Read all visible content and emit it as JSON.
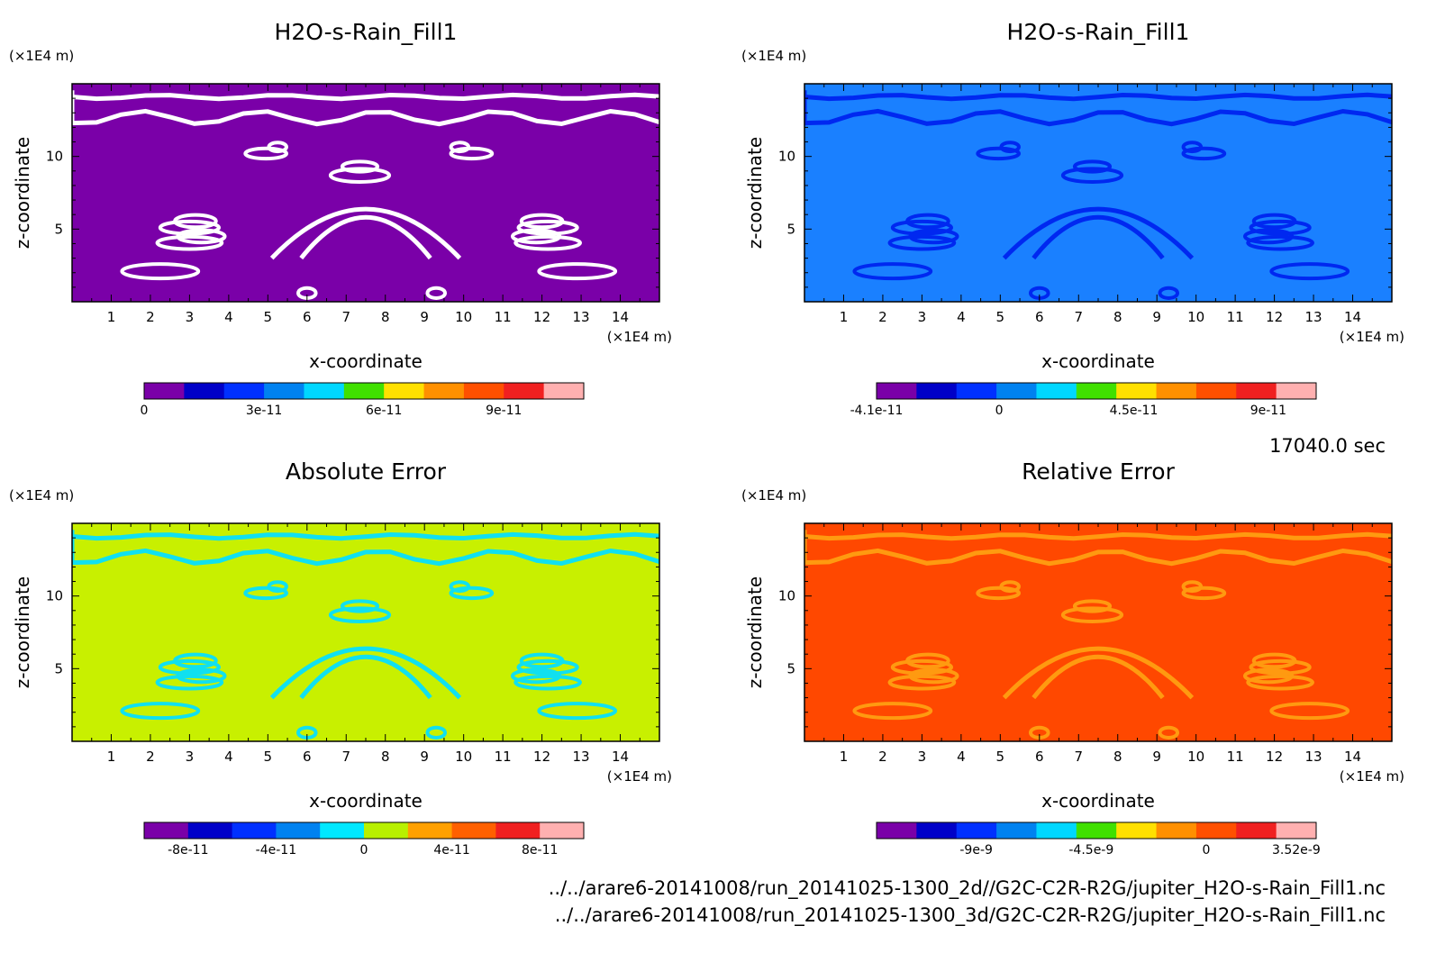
{
  "chart_data": [
    {
      "type": "heatmap",
      "title": "H2O-s-Rain_Fill1",
      "xlabel": "x-coordinate",
      "ylabel": "z-coordinate",
      "x_unit": "(×1E4 m)",
      "y_unit": "(×1E4 m)",
      "xlim": [
        0,
        15
      ],
      "ylim": [
        0,
        15
      ],
      "x_ticks": [
        1,
        2,
        3,
        4,
        5,
        6,
        7,
        8,
        9,
        10,
        11,
        12,
        13,
        14
      ],
      "y_ticks": [
        5,
        10
      ],
      "background_color": "#7a00a8",
      "feature_color": "#ffffff",
      "colorbar": {
        "colors": [
          "#7a00a8",
          "#0000c8",
          "#0030ff",
          "#0082f0",
          "#00d7ff",
          "#40e000",
          "#ffe000",
          "#ff9000",
          "#ff5000",
          "#f02020",
          "#ffb0b0"
        ],
        "tick_labels": [
          "0",
          "3e-11",
          "6e-11",
          "9e-11"
        ],
        "tick_values": [
          0,
          3,
          6,
          9
        ],
        "range": [
          0,
          11
        ]
      }
    },
    {
      "type": "heatmap",
      "title": "H2O-s-Rain_Fill1",
      "xlabel": "x-coordinate",
      "ylabel": "z-coordinate",
      "x_unit": "(×1E4 m)",
      "y_unit": "(×1E4 m)",
      "xlim": [
        0,
        15
      ],
      "ylim": [
        0,
        15
      ],
      "x_ticks": [
        1,
        2,
        3,
        4,
        5,
        6,
        7,
        8,
        9,
        10,
        11,
        12,
        13,
        14
      ],
      "y_ticks": [
        5,
        10
      ],
      "background_color": "#1a80ff",
      "feature_color": "#0028f0",
      "colorbar": {
        "colors": [
          "#7a00a8",
          "#0000c8",
          "#0030ff",
          "#0082f0",
          "#00d7ff",
          "#40e000",
          "#ffe000",
          "#ff9000",
          "#ff5000",
          "#f02020",
          "#ffb0b0"
        ],
        "tick_labels": [
          "-4.1e-11",
          "0",
          "4.5e-11",
          "9e-11"
        ],
        "tick_values": [
          -4.1,
          0,
          4.5,
          9
        ],
        "range": [
          -4.1,
          10.6
        ]
      }
    },
    {
      "type": "heatmap",
      "title": "Absolute Error",
      "xlabel": "x-coordinate",
      "ylabel": "z-coordinate",
      "x_unit": "(×1E4 m)",
      "y_unit": "(×1E4 m)",
      "xlim": [
        0,
        15
      ],
      "ylim": [
        0,
        15
      ],
      "x_ticks": [
        1,
        2,
        3,
        4,
        5,
        6,
        7,
        8,
        9,
        10,
        11,
        12,
        13,
        14
      ],
      "y_ticks": [
        5,
        10
      ],
      "background_color": "#c8f000",
      "feature_color": "#10e0f0",
      "colorbar": {
        "colors": [
          "#7a00a8",
          "#0000c8",
          "#0030ff",
          "#0082f0",
          "#00e8ff",
          "#b8f000",
          "#ffa000",
          "#ff6000",
          "#f02020",
          "#ffb0b0"
        ],
        "tick_labels": [
          "-8e-11",
          "-4e-11",
          "0",
          "4e-11",
          "8e-11"
        ],
        "tick_values": [
          -8,
          -4,
          0,
          4,
          8
        ],
        "range": [
          -10,
          10
        ]
      }
    },
    {
      "type": "heatmap",
      "title": "Relative Error",
      "xlabel": "x-coordinate",
      "ylabel": "z-coordinate",
      "x_unit": "(×1E4 m)",
      "y_unit": "(×1E4 m)",
      "xlim": [
        0,
        15
      ],
      "ylim": [
        0,
        15
      ],
      "x_ticks": [
        1,
        2,
        3,
        4,
        5,
        6,
        7,
        8,
        9,
        10,
        11,
        12,
        13,
        14
      ],
      "y_ticks": [
        5,
        10
      ],
      "background_color": "#ff4800",
      "feature_color": "#ff9a10",
      "colorbar": {
        "colors": [
          "#7a00a8",
          "#0000c8",
          "#0030ff",
          "#0082f0",
          "#00d7ff",
          "#40e000",
          "#ffe000",
          "#ff9000",
          "#ff5000",
          "#f02020",
          "#ffb0b0"
        ],
        "tick_labels": [
          "-9e-9",
          "-4.5e-9",
          "0",
          "3.52e-9"
        ],
        "tick_values": [
          -9,
          -4.5,
          0,
          3.52
        ],
        "range": [
          -12.9,
          4.3
        ]
      }
    }
  ],
  "time_label": "17040.0 sec",
  "file_paths": [
    "../../arare6-20141008/run_20141025-1300_2d//G2C-C2R-R2G/jupiter_H2O-s-Rain_Fill1.nc",
    "../../arare6-20141008/run_20141025-1300_3d/G2C-C2R-R2G/jupiter_H2O-s-Rain_Fill1.nc"
  ]
}
